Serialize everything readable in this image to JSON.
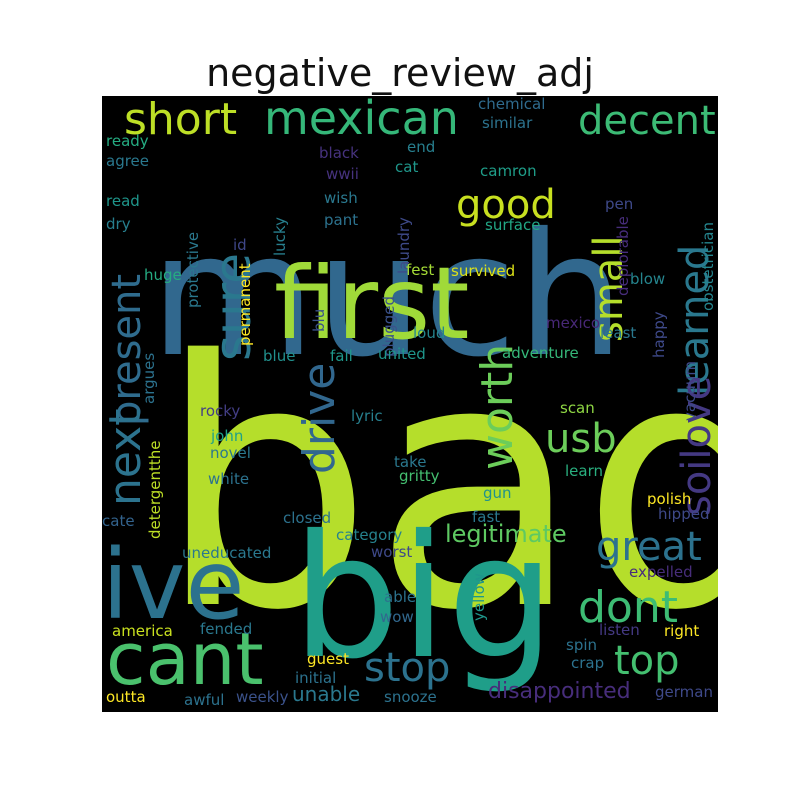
{
  "title": "negative_review_adj",
  "cloud": {
    "background": "#000000",
    "words": [
      {
        "text": "bad",
        "color": "#b5de2b",
        "size": 340
      },
      {
        "text": "much",
        "color": "#31688e",
        "size": 170
      },
      {
        "text": "big",
        "color": "#1f9e89",
        "size": 170
      },
      {
        "text": "first",
        "color": "#a0da39",
        "size": 100
      },
      {
        "text": "ive",
        "color": "#2c728e",
        "size": 96
      },
      {
        "text": "cant",
        "color": "#4ac16d",
        "size": 72
      },
      {
        "text": "mexican",
        "color": "#35b779",
        "size": 46
      },
      {
        "text": "short",
        "color": "#bddf26",
        "size": 44
      },
      {
        "text": "decent",
        "color": "#3cbb75",
        "size": 40
      },
      {
        "text": "good",
        "color": "#c8e020",
        "size": 40
      },
      {
        "text": "sure",
        "color": "#2a788e",
        "size": 50
      },
      {
        "text": "learned",
        "color": "#2a788e",
        "size": 40
      },
      {
        "text": "small",
        "color": "#b5de2b",
        "size": 40
      },
      {
        "text": "present",
        "color": "#2f6c8e",
        "size": 40
      },
      {
        "text": "soilove",
        "color": "#443983",
        "size": 40
      },
      {
        "text": "worth",
        "color": "#6ccd5a",
        "size": 44
      },
      {
        "text": "drive",
        "color": "#31678e",
        "size": 44
      },
      {
        "text": "usb",
        "color": "#6ccd5a",
        "size": 40
      },
      {
        "text": "next",
        "color": "#2c738e",
        "size": 44
      },
      {
        "text": "great",
        "color": "#2c728e",
        "size": 40
      },
      {
        "text": "dont",
        "color": "#3dbc74",
        "size": 44
      },
      {
        "text": "top",
        "color": "#44bf70",
        "size": 40
      },
      {
        "text": "stop",
        "color": "#2c728e",
        "size": 40
      },
      {
        "text": "legitimate",
        "color": "#5ec962",
        "size": 24
      },
      {
        "text": "disappointed",
        "color": "#472d7b",
        "size": 22
      },
      {
        "text": "unable",
        "color": "#2a788e",
        "size": 20
      },
      {
        "text": "chemical",
        "color": "#2f6b8e",
        "size": 15
      },
      {
        "text": "similar",
        "color": "#2c738e",
        "size": 15
      },
      {
        "text": "ready",
        "color": "#25ac82",
        "size": 15
      },
      {
        "text": "agree",
        "color": "#2a788e",
        "size": 15
      },
      {
        "text": "black",
        "color": "#46327e",
        "size": 15
      },
      {
        "text": "end",
        "color": "#277f8e",
        "size": 15
      },
      {
        "text": "wwii",
        "color": "#46327e",
        "size": 15
      },
      {
        "text": "cat",
        "color": "#1f978b",
        "size": 15
      },
      {
        "text": "camron",
        "color": "#1f9e89",
        "size": 15
      },
      {
        "text": "wish",
        "color": "#2a788e",
        "size": 15
      },
      {
        "text": "read",
        "color": "#1f968b",
        "size": 15
      },
      {
        "text": "pen",
        "color": "#3e4989",
        "size": 15
      },
      {
        "text": "dry",
        "color": "#277f8e",
        "size": 15
      },
      {
        "text": "pant",
        "color": "#2c728e",
        "size": 15
      },
      {
        "text": "surface",
        "color": "#22a785",
        "size": 15
      },
      {
        "text": "id",
        "color": "#3f4788",
        "size": 15
      },
      {
        "text": "protective",
        "color": "#2a788e",
        "size": 15
      },
      {
        "text": "lucky",
        "color": "#277f8e",
        "size": 15
      },
      {
        "text": "laundry",
        "color": "#3e4a89",
        "size": 15
      },
      {
        "text": "deplorable",
        "color": "#472d7b",
        "size": 15
      },
      {
        "text": "obstetrician",
        "color": "#25858e",
        "size": 15
      },
      {
        "text": "huge",
        "color": "#25ac82",
        "size": 15
      },
      {
        "text": "permanent",
        "color": "#fde725",
        "size": 15
      },
      {
        "text": "plugged",
        "color": "#3b528b",
        "size": 15
      },
      {
        "text": "fest",
        "color": "#a5db36",
        "size": 15
      },
      {
        "text": "survived",
        "color": "#dde318",
        "size": 15
      },
      {
        "text": "blow",
        "color": "#25858e",
        "size": 15
      },
      {
        "text": "blu",
        "color": "#3b528b",
        "size": 15
      },
      {
        "text": "mexico",
        "color": "#482878",
        "size": 15
      },
      {
        "text": "least",
        "color": "#2a788e",
        "size": 15
      },
      {
        "text": "loud",
        "color": "#25858e",
        "size": 15
      },
      {
        "text": "happy",
        "color": "#3e4989",
        "size": 15
      },
      {
        "text": "argues",
        "color": "#2c728e",
        "size": 15
      },
      {
        "text": "blue",
        "color": "#21908d",
        "size": 15
      },
      {
        "text": "fail",
        "color": "#1f988b",
        "size": 15
      },
      {
        "text": "united",
        "color": "#1f968b",
        "size": 15
      },
      {
        "text": "adventure",
        "color": "#35b779",
        "size": 15
      },
      {
        "text": "vacuum",
        "color": "#3e4a89",
        "size": 15
      },
      {
        "text": "rocky",
        "color": "#433e85",
        "size": 15
      },
      {
        "text": "lyric",
        "color": "#277f8e",
        "size": 15
      },
      {
        "text": "scan",
        "color": "#8fd744",
        "size": 15
      },
      {
        "text": "john",
        "color": "#1fa188",
        "size": 15
      },
      {
        "text": "novel",
        "color": "#2a788e",
        "size": 15
      },
      {
        "text": "take",
        "color": "#2a788e",
        "size": 15
      },
      {
        "text": "detergentthe",
        "color": "#bddf26",
        "size": 15
      },
      {
        "text": "white",
        "color": "#2c728e",
        "size": 15
      },
      {
        "text": "gritty",
        "color": "#44bf70",
        "size": 15
      },
      {
        "text": "learn",
        "color": "#29af7f",
        "size": 15
      },
      {
        "text": "gun",
        "color": "#21918c",
        "size": 15
      },
      {
        "text": "polish",
        "color": "#fde725",
        "size": 15
      },
      {
        "text": "cate",
        "color": "#33638d",
        "size": 15
      },
      {
        "text": "closed",
        "color": "#2c728e",
        "size": 15
      },
      {
        "text": "fast",
        "color": "#2a788e",
        "size": 15
      },
      {
        "text": "hipped",
        "color": "#3e4989",
        "size": 15
      },
      {
        "text": "category",
        "color": "#26828e",
        "size": 15
      },
      {
        "text": "uneducated",
        "color": "#2a788e",
        "size": 15
      },
      {
        "text": "worst",
        "color": "#3e4989",
        "size": 15
      },
      {
        "text": "expelled",
        "color": "#472d7b",
        "size": 15
      },
      {
        "text": "able",
        "color": "#2c728e",
        "size": 15
      },
      {
        "text": "wow",
        "color": "#31688e",
        "size": 15
      },
      {
        "text": "yellow",
        "color": "#1f968b",
        "size": 15
      },
      {
        "text": "america",
        "color": "#cae11f",
        "size": 15
      },
      {
        "text": "fended",
        "color": "#2a788e",
        "size": 15
      },
      {
        "text": "listen",
        "color": "#443983",
        "size": 15
      },
      {
        "text": "right",
        "color": "#fde725",
        "size": 15
      },
      {
        "text": "spin",
        "color": "#2c728e",
        "size": 15
      },
      {
        "text": "guest",
        "color": "#fde725",
        "size": 15
      },
      {
        "text": "initial",
        "color": "#2c728e",
        "size": 15
      },
      {
        "text": "crap",
        "color": "#2c728e",
        "size": 15
      },
      {
        "text": "outta",
        "color": "#fde725",
        "size": 15
      },
      {
        "text": "awful",
        "color": "#2c728e",
        "size": 15
      },
      {
        "text": "weekly",
        "color": "#3b528b",
        "size": 15
      },
      {
        "text": "snooze",
        "color": "#2c728e",
        "size": 15
      },
      {
        "text": "german",
        "color": "#3e4989",
        "size": 15
      }
    ]
  }
}
